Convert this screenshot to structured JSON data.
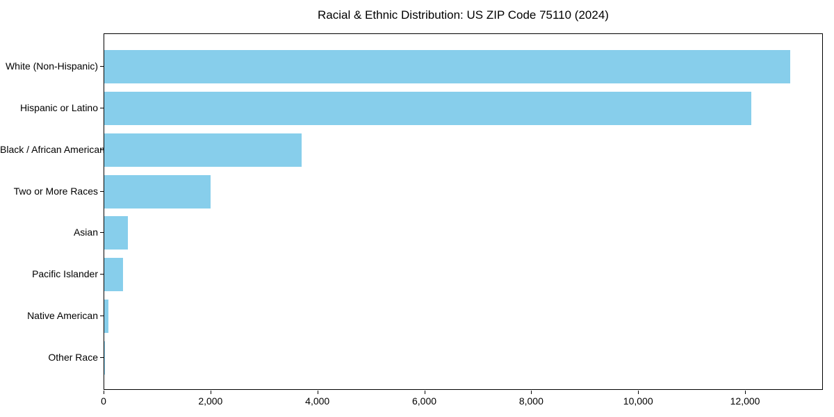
{
  "chart_data": {
    "type": "bar",
    "orientation": "horizontal",
    "title": "Racial & Ethnic Distribution: US ZIP Code 75110 (2024)",
    "categories": [
      "White (Non-Hispanic)",
      "Hispanic or Latino",
      "Black / African American",
      "Two or More Races",
      "Asian",
      "Pacific Islander",
      "Native American",
      "Other Race"
    ],
    "values": [
      12832,
      12098,
      3692,
      1989,
      440,
      345,
      80,
      15
    ],
    "xlabel": "",
    "ylabel": "",
    "xlim": [
      0,
      13455
    ],
    "xticks": [
      0,
      2000,
      4000,
      6000,
      8000,
      10000,
      12000
    ],
    "xtick_labels": [
      "0",
      "2,000",
      "4,000",
      "6,000",
      "8,000",
      "10,000",
      "12,000"
    ],
    "bar_color": "#87CEEB",
    "spine_color": "#000000",
    "background_color": "#FFFFFF",
    "grid": false,
    "legend": null
  }
}
